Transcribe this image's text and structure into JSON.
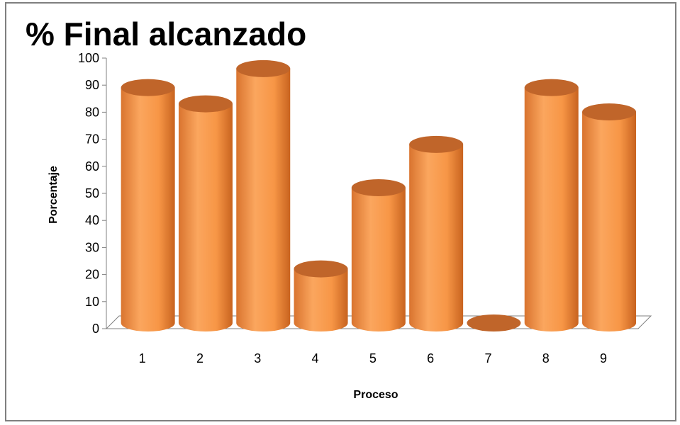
{
  "chart_data": {
    "type": "bar",
    "style": "3d-cylinder",
    "title": "% Final alcanzado",
    "xlabel": "Proceso",
    "ylabel": "Porcentaje",
    "categories": [
      "1",
      "2",
      "3",
      "4",
      "5",
      "6",
      "7",
      "8",
      "9"
    ],
    "values": [
      87,
      81,
      94,
      20,
      50,
      66,
      0,
      87,
      78
    ],
    "ylim": [
      0,
      100
    ],
    "yticks": [
      0,
      10,
      20,
      30,
      40,
      50,
      60,
      70,
      80,
      90,
      100
    ],
    "grid": false,
    "legend": "none",
    "bar_color": "#F79646",
    "bar_top_color": "#C0652A"
  }
}
